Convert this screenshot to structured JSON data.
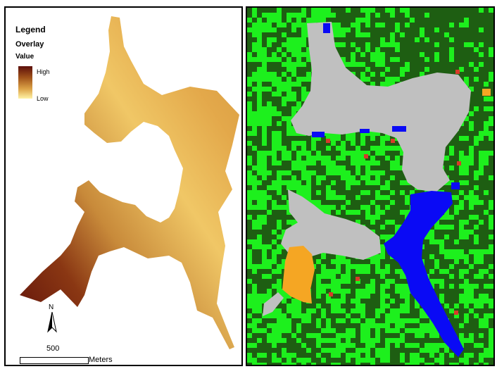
{
  "legend": {
    "title": "Legend",
    "layer": "Overlay",
    "field": "Value",
    "high": "High",
    "low": "Low",
    "ramp_colors": [
      "#5c0f0a",
      "#a0521a",
      "#dca247",
      "#fff3a6"
    ]
  },
  "north": {
    "label": "N"
  },
  "scale": {
    "value": "500",
    "unit": "Meters"
  },
  "land_cover_colors": {
    "dark_forest": "#1e5e12",
    "light_vegetation": "#1df01d",
    "open_area": "#c0c0c0",
    "water": "#0a0af5",
    "orange_patch": "#f5a623",
    "red_points": "#d83a2a"
  }
}
